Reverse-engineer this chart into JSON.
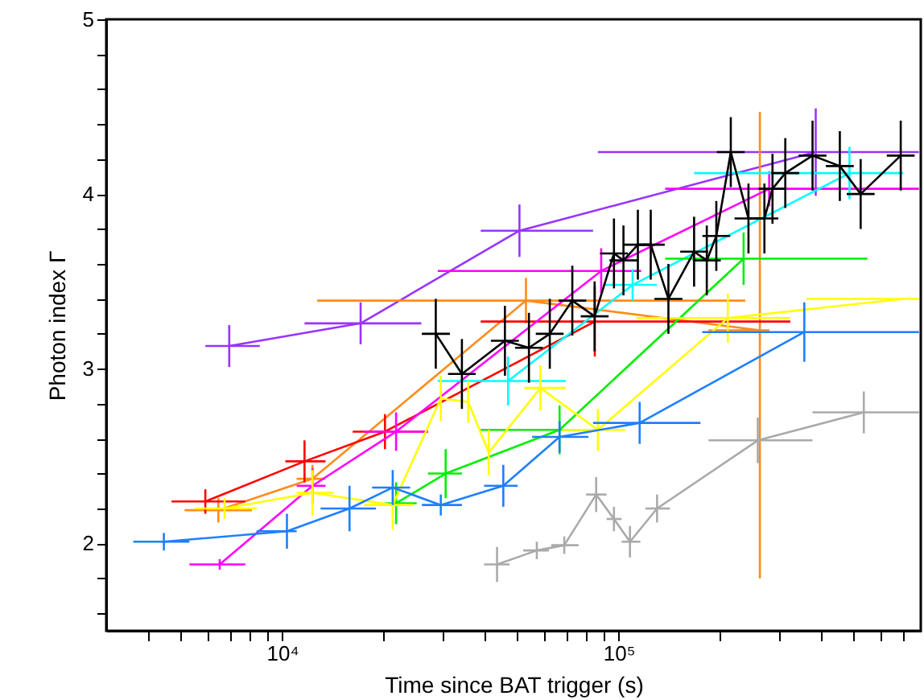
{
  "chart_data": {
    "type": "line",
    "xlabel": "Time since BAT trigger (s)",
    "ylabel": "Photon index Γ",
    "log": "x",
    "grid": false,
    "marker": "none",
    "line_style": "solid",
    "xlim": [
      3000,
      790000
    ],
    "ylim": [
      1.5,
      5
    ],
    "xticks": [
      {
        "value": 4000,
        "label": null
      },
      {
        "value": 5000,
        "label": null
      },
      {
        "value": 6000,
        "label": null
      },
      {
        "value": 7000,
        "label": null
      },
      {
        "value": 8000,
        "label": null
      },
      {
        "value": 9000,
        "label": null
      },
      {
        "value": 10000,
        "label": "10⁴"
      },
      {
        "value": 20000,
        "label": null
      },
      {
        "value": 30000,
        "label": null
      },
      {
        "value": 40000,
        "label": null
      },
      {
        "value": 50000,
        "label": null
      },
      {
        "value": 60000,
        "label": null
      },
      {
        "value": 70000,
        "label": null
      },
      {
        "value": 80000,
        "label": null
      },
      {
        "value": 90000,
        "label": null
      },
      {
        "value": 100000,
        "label": "10⁵"
      },
      {
        "value": 200000,
        "label": null
      },
      {
        "value": 300000,
        "label": null
      },
      {
        "value": 400000,
        "label": null
      },
      {
        "value": 500000,
        "label": null
      },
      {
        "value": 600000,
        "label": null
      },
      {
        "value": 700000,
        "label": null
      }
    ],
    "yticks": [
      {
        "value": 1.6,
        "label": null
      },
      {
        "value": 1.8,
        "label": null
      },
      2,
      {
        "value": 2.2,
        "label": null
      },
      {
        "value": 2.4,
        "label": null
      },
      {
        "value": 2.6,
        "label": null
      },
      {
        "value": 2.8,
        "label": null
      },
      3,
      {
        "value": 3.2,
        "label": null
      },
      {
        "value": 3.4,
        "label": null
      },
      {
        "value": 3.6,
        "label": null
      },
      {
        "value": 3.8,
        "label": null
      },
      4,
      {
        "value": 4.2,
        "label": null
      },
      {
        "value": 4.4,
        "label": null
      },
      {
        "value": 4.6,
        "label": null
      },
      {
        "value": 4.8,
        "label": null
      },
      5
    ],
    "series": [
      {
        "color": "#9933ff",
        "x": [
          6960,
          17100,
          50700,
          385000
        ],
        "values": [
          3.13,
          3.26,
          3.79,
          4.24
        ],
        "errors": [
          0.12,
          0.12,
          0.15,
          0.25
        ],
        "xerrors": [
          [
            5910,
            8580
          ],
          [
            11650,
            25900
          ],
          [
            38900,
            83900
          ],
          [
            86700,
            780000
          ]
        ]
      },
      {
        "color": "#ff8c1a",
        "x": [
          6460,
          12300,
          53000,
          262700
        ],
        "values": [
          2.19,
          2.37,
          3.39,
          3.22
        ],
        "errors": [
          0.07,
          0.08,
          0.13,
          [
            1.8,
            4.47
          ]
        ],
        "xerrors": [
          [
            5130,
            8130
          ],
          [
            11040,
            13450
          ],
          [
            12700,
            237700
          ],
          [
            184900,
            280600
          ]
        ]
      },
      {
        "color": "#ff0000",
        "x": [
          5910,
          11650,
          20200,
          84900
        ],
        "values": [
          2.24,
          2.47,
          2.64,
          3.27
        ],
        "errors": [
          0.07,
          0.12,
          0.1,
          0.2
        ],
        "xerrors": [
          [
            4690,
            7770
          ],
          [
            10220,
            13450
          ],
          [
            16200,
            27100
          ],
          [
            38900,
            323600
          ]
        ]
      },
      {
        "color": "#ff00ff",
        "x": [
          6520,
          12300,
          21800,
          88700,
          280000
        ],
        "values": [
          1.88,
          2.33,
          2.64,
          3.56,
          4.03
        ],
        "errors": [
          0.03,
          0.1,
          0.11,
          0.13,
          0.1
        ],
        "xerrors": [
          [
            5300,
            7770
          ],
          [
            11040,
            13450
          ],
          [
            17500,
            27100
          ],
          [
            29000,
            116600
          ],
          [
            137400,
            780000
          ]
        ]
      },
      {
        "color": "#00ffff",
        "x": [
          46900,
          110000,
          485000
        ],
        "values": [
          2.93,
          3.48,
          4.12
        ],
        "errors": [
          0.14,
          0.09,
          0.15
        ],
        "xerrors": [
          [
            29000,
            69600
          ],
          [
            90000,
            130000
          ],
          [
            167500,
            700000
          ]
        ]
      },
      {
        "color": "#00ee00",
        "x": [
          21800,
          30600,
          66700,
          235000
        ],
        "values": [
          2.23,
          2.4,
          2.65,
          3.63
        ],
        "errors": [
          0.12,
          0.14,
          0.14,
          0.15
        ],
        "xerrors": [
          [
            20200,
            25100
          ],
          [
            27100,
            34200
          ],
          [
            38900,
            81300
          ],
          [
            137400,
            548000
          ]
        ]
      },
      {
        "color": "#ffff00",
        "x": [
          6740,
          12300,
          21300,
          29600,
          35700,
          41100,
          58500,
          86700,
          211000,
          700000
        ],
        "values": [
          2.2,
          2.29,
          2.22,
          2.83,
          2.81,
          2.52,
          2.89,
          2.65,
          3.29,
          3.4
        ],
        "errors": [
          0.06,
          0.13,
          0.14,
          0.13,
          0.12,
          0.13,
          0.13,
          0.12,
          0.14,
          null
        ],
        "xerrors": [
          [
            5500,
            8400
          ],
          [
            11040,
            14200
          ],
          [
            17500,
            24500
          ],
          null,
          null,
          null,
          [
            52400,
            69600
          ],
          [
            67800,
            104500
          ],
          [
            112800,
            323600
          ],
          [
            360600,
            780000
          ]
        ]
      },
      {
        "color": "#1e7fff",
        "x": [
          4450,
          10330,
          15850,
          21300,
          29600,
          45400,
          66700,
          115400,
          356000
        ],
        "values": [
          2.01,
          2.07,
          2.2,
          2.32,
          2.22,
          2.33,
          2.61,
          2.69,
          3.21
        ],
        "errors": [
          0.05,
          0.1,
          0.13,
          0.1,
          0.06,
          0.12,
          0.09,
          0.12,
          0.17
        ],
        "xerrors": [
          [
            3610,
            5300
          ],
          [
            8390,
            11040
          ],
          [
            13000,
            19000
          ],
          [
            18500,
            24000
          ],
          [
            26000,
            34200
          ],
          [
            39800,
            50100
          ],
          [
            55300,
            81300
          ],
          [
            83900,
            175000
          ],
          [
            177000,
            780000
          ]
        ]
      },
      {
        "color": "#aaaaaa",
        "x": [
          43500,
          57100,
          68900,
          85700,
          96800,
          108000,
          130000,
          259000,
          535000
        ],
        "values": [
          1.88,
          1.96,
          1.99,
          2.28,
          2.14,
          2.01,
          2.2,
          2.59,
          2.75
        ],
        "errors": [
          0.1,
          0.05,
          0.05,
          0.1,
          0.07,
          0.09,
          0.08,
          0.13,
          0.12
        ],
        "xerrors": [
          [
            39800,
            47400
          ],
          [
            52000,
            62000
          ],
          [
            63000,
            76000
          ],
          [
            80000,
            92000
          ],
          [
            92000,
            102000
          ],
          [
            102000,
            116000
          ],
          [
            120000,
            142000
          ],
          [
            184900,
            376700
          ],
          [
            376700,
            780000
          ]
        ]
      },
      {
        "color": "#000000",
        "x": [
          28600,
          34200,
          45900,
          54100,
          62400,
          72800,
          84800,
          96800,
          103300,
          114000,
          124500,
          140500,
          167500,
          182700,
          195000,
          215300,
          243000,
          271000,
          286400,
          312600,
          376700,
          454000,
          523600,
          688700
        ],
        "values": [
          3.2,
          2.97,
          3.16,
          3.12,
          3.2,
          3.39,
          3.3,
          3.66,
          3.62,
          3.71,
          3.71,
          3.4,
          3.67,
          3.62,
          3.76,
          4.24,
          3.86,
          3.86,
          4.03,
          4.12,
          4.22,
          4.16,
          4.0,
          4.22
        ],
        "errors": [
          0.2,
          0.2,
          0.2,
          0.2,
          0.2,
          0.2,
          0.2,
          0.2,
          0.2,
          0.2,
          0.2,
          0.2,
          0.2,
          0.2,
          0.2,
          0.2,
          0.2,
          0.2,
          0.2,
          0.2,
          0.2,
          0.2,
          0.2,
          0.2
        ],
        "xerrors": [
          [
            26000,
            31500
          ],
          [
            31100,
            37600
          ],
          [
            41700,
            50500
          ],
          [
            49200,
            59500
          ],
          [
            56700,
            68600
          ],
          [
            66200,
            80100
          ],
          [
            77100,
            93300
          ],
          [
            88000,
            106500
          ],
          [
            93900,
            113600
          ],
          [
            103600,
            125400
          ],
          [
            113200,
            137000
          ],
          [
            127700,
            154600
          ],
          [
            152300,
            184300
          ],
          [
            166100,
            201000
          ],
          [
            177300,
            214500
          ],
          [
            195700,
            236800
          ],
          [
            220900,
            267300
          ],
          [
            246400,
            298100
          ],
          [
            260400,
            315000
          ],
          [
            284200,
            343900
          ],
          [
            342500,
            414400
          ],
          [
            412700,
            499400
          ],
          [
            476000,
            576000
          ],
          [
            626100,
            757600
          ]
        ]
      }
    ]
  }
}
